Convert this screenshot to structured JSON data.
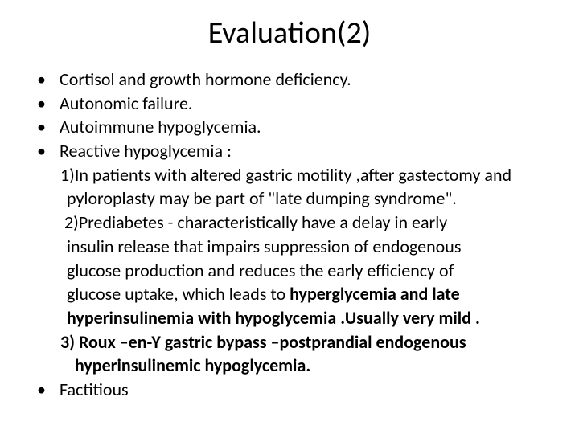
{
  "title": "Evaluation(2)",
  "bullets": {
    "b1": "Cortisol and growth hormone deficiency.",
    "b2": "Autonomic failure.",
    "b3": "Autoimmune hypoglycemia.",
    "b4": "Reactive hypoglycemia :",
    "b5": "Factitious"
  },
  "sub1": {
    "l1": "1)In patients with altered gastric motility ,after gastectomy  and",
    "l2": "pyloroplasty may be part of \"late dumping syndrome\"."
  },
  "sub2": {
    "l1": "2)Prediabetes - characteristically have a delay in early",
    "l2": "insulin release that impairs suppression of endogenous",
    "l3": "glucose production and reduces the early efficiency of",
    "l4a": "glucose uptake, which leads to ",
    "l4b": "hyperglycemia and late",
    "l5": "hyperinsulinemia with hypoglycemia .Usually very mild ."
  },
  "sub3": {
    "l1a": "3) Roux –en-Y  gastric bypass –postprandial endogenous",
    "l2": "hyperinsulinemic hypoglycemia."
  },
  "style": {
    "background": "#ffffff",
    "text_color": "#000000",
    "title_fontsize": 38,
    "body_fontsize": 22
  }
}
